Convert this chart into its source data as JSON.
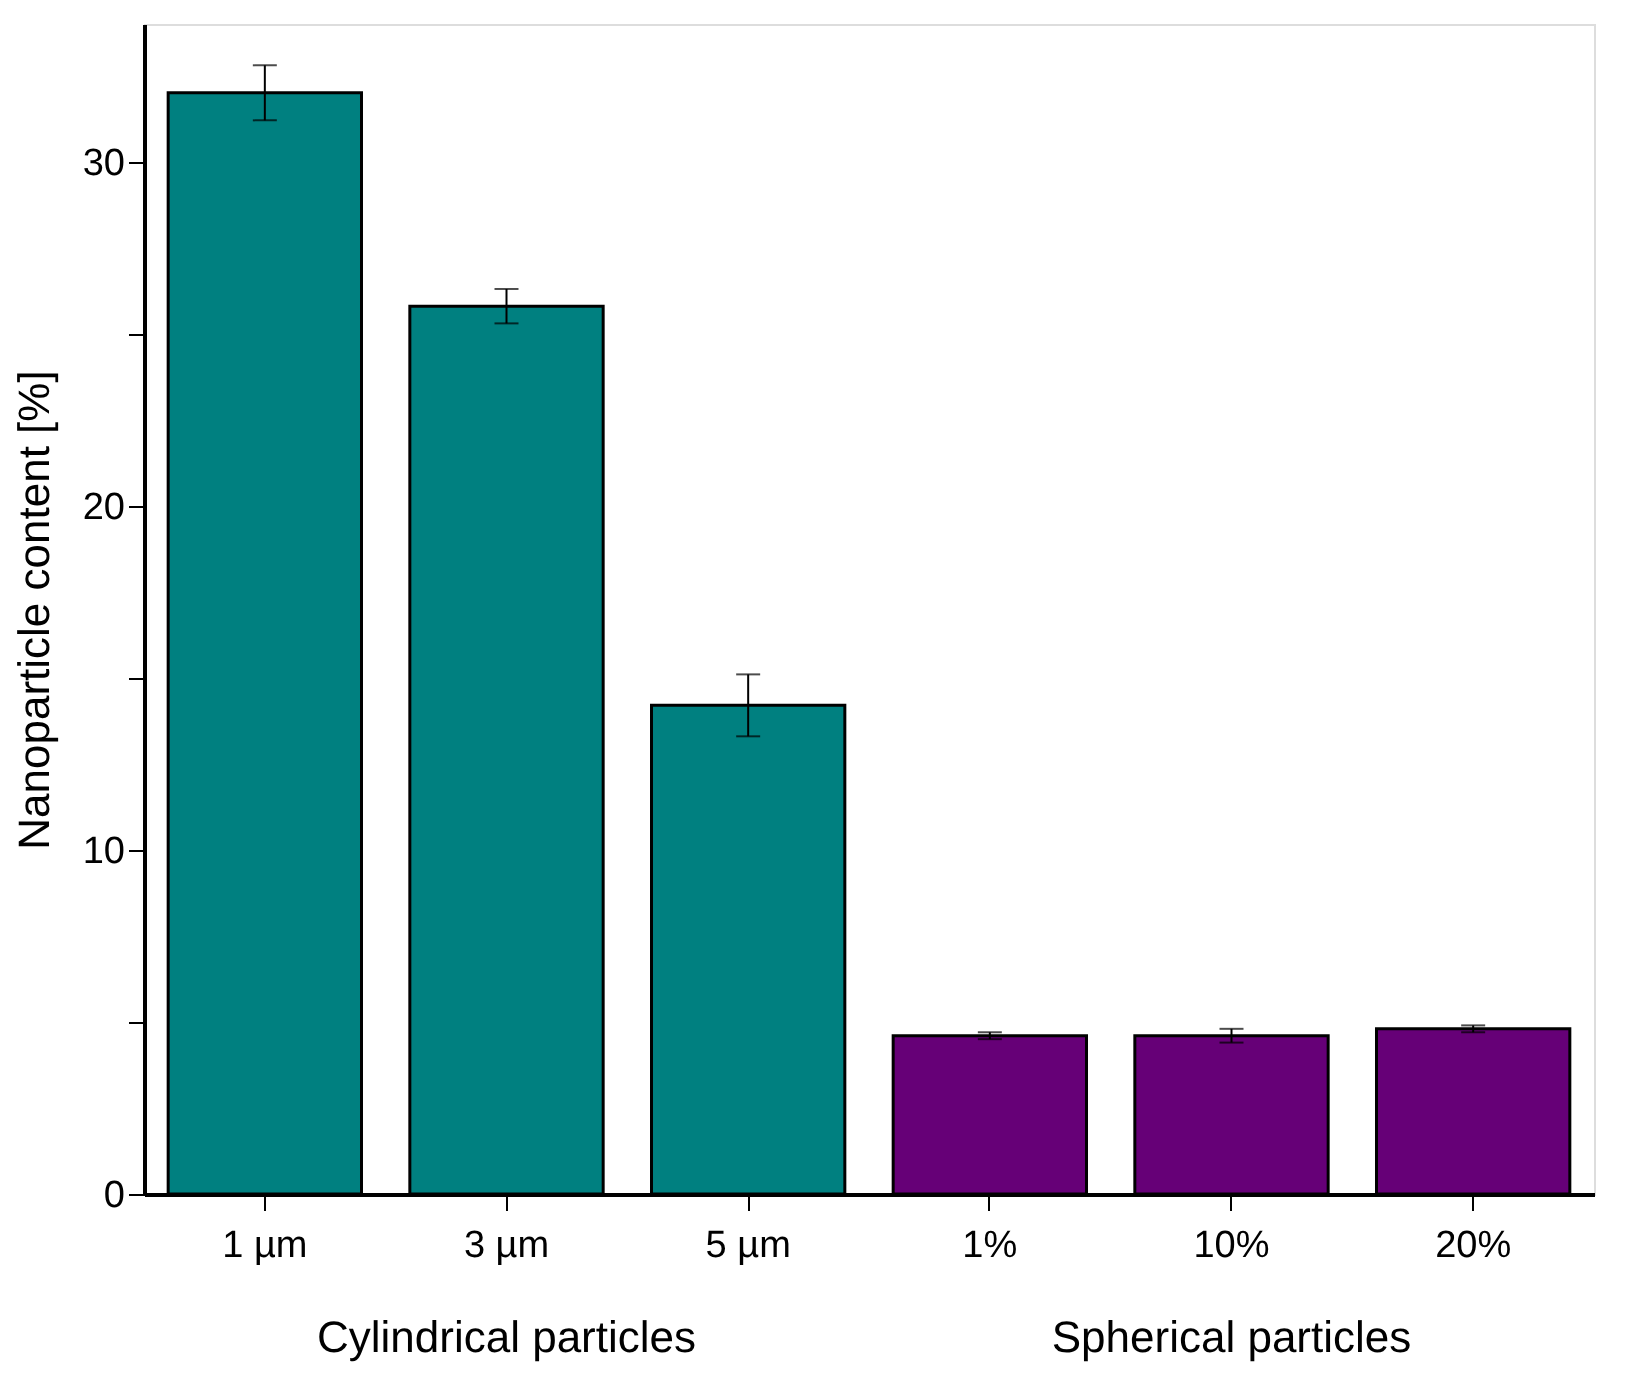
{
  "chart_data": {
    "type": "bar",
    "ylabel": "Nanoparticle content [%]",
    "categories": [
      "1 µm",
      "3 µm",
      "5 µm",
      "1%",
      "10%",
      "20%"
    ],
    "values": [
      32.0,
      25.8,
      14.2,
      4.6,
      4.6,
      4.8
    ],
    "errors": [
      0.8,
      0.5,
      0.9,
      0.1,
      0.2,
      0.1
    ],
    "colors": [
      "#008080",
      "#008080",
      "#008080",
      "#660077",
      "#660077",
      "#660077"
    ],
    "ylim": [
      0,
      34
    ],
    "yticks": [
      0,
      {
        "value": 5,
        "label": null
      },
      10,
      {
        "value": 15,
        "label": null
      },
      20,
      {
        "value": 25,
        "label": null
      },
      30
    ],
    "annotations": [
      "Cylindrical particles",
      "Spherical particles"
    ],
    "grid": false
  }
}
